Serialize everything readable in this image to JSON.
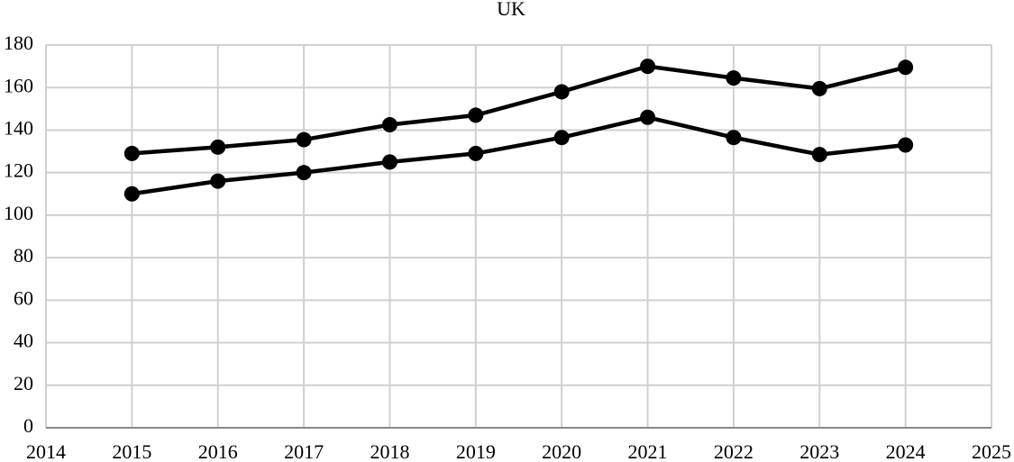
{
  "chart_data": {
    "type": "line",
    "title": "UK",
    "x": [
      2015,
      2016,
      2017,
      2018,
      2019,
      2020,
      2021,
      2022,
      2023,
      2024
    ],
    "series": [
      {
        "color": "#000000",
        "values": [
          129,
          132,
          135.5,
          142.5,
          147,
          158,
          170,
          164.5,
          159.5,
          169.5
        ]
      },
      {
        "color": "#000000",
        "values": [
          110,
          116,
          120,
          125,
          129,
          136.5,
          146,
          136.5,
          128.5,
          133
        ]
      }
    ],
    "xlim": [
      2014,
      2025
    ],
    "xticks": [
      2014,
      2015,
      2016,
      2017,
      2018,
      2019,
      2020,
      2021,
      2022,
      2023,
      2024,
      2025
    ],
    "ylim": [
      0,
      180
    ],
    "yticks": [
      0,
      20,
      40,
      60,
      80,
      100,
      120,
      140,
      160,
      180
    ],
    "grid": true
  }
}
